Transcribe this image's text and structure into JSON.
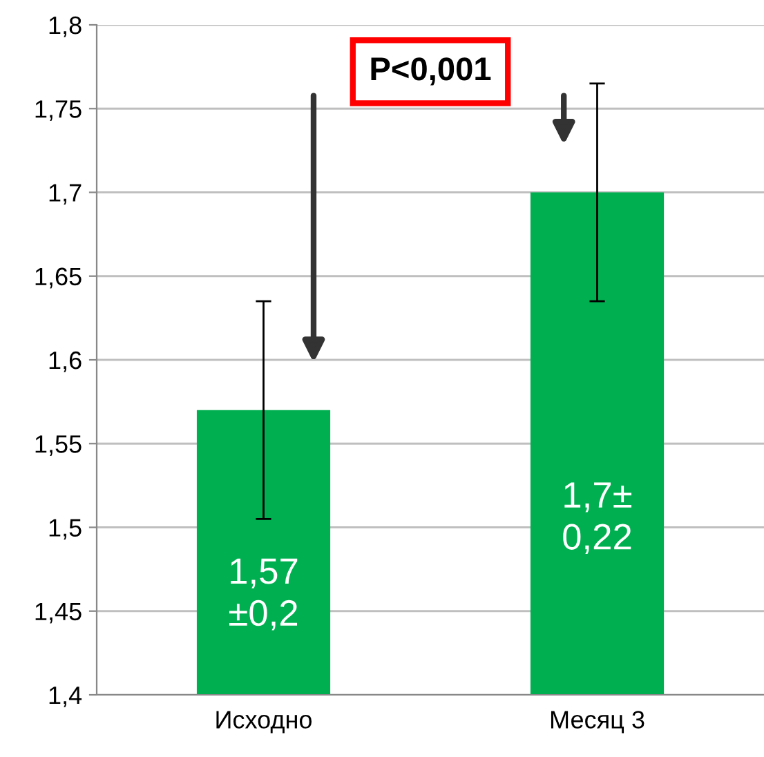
{
  "chart_data": {
    "type": "bar",
    "categories": [
      "Исходно",
      "Месяц 3"
    ],
    "series": [
      {
        "color": "#00b050",
        "values": [
          1.57,
          1.7
        ],
        "errors": [
          0.065,
          0.065
        ],
        "value_labels": [
          "1,57\n±0,2",
          "1,7±\n0,22"
        ]
      }
    ],
    "ylim": [
      1.4,
      1.8
    ],
    "yticks": [
      {
        "value": 1.4,
        "label": "1,4"
      },
      {
        "value": 1.45,
        "label": "1,45"
      },
      {
        "value": 1.5,
        "label": "1,5"
      },
      {
        "value": 1.55,
        "label": "1,55"
      },
      {
        "value": 1.6,
        "label": "1,6"
      },
      {
        "value": 1.65,
        "label": "1,65"
      },
      {
        "value": 1.7,
        "label": "1,7"
      },
      {
        "value": 1.75,
        "label": "1,75"
      },
      {
        "value": 1.8,
        "label": "1,8"
      }
    ],
    "grid": "y",
    "annotations": [
      "P<0,001"
    ]
  }
}
